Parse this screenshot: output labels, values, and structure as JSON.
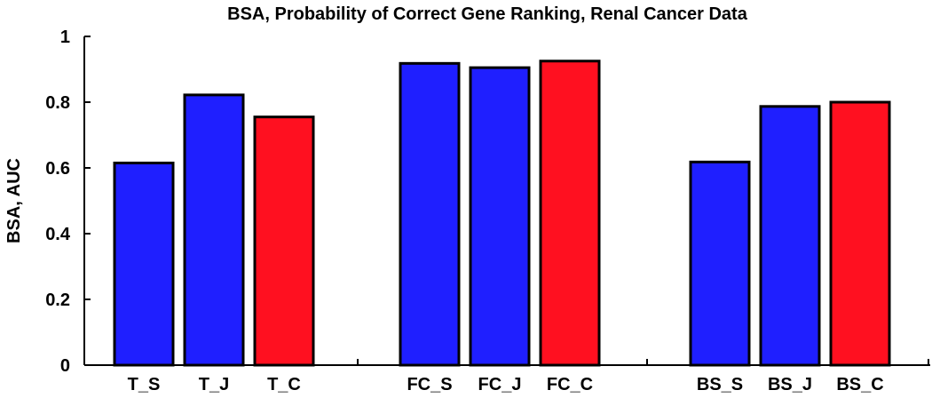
{
  "chart_data": {
    "type": "bar",
    "title": "BSA, Probability of Correct Gene Ranking, Renal Cancer Data",
    "xlabel": "",
    "ylabel": "BSA, AUC",
    "ylim": [
      0,
      1
    ],
    "yticks": [
      "0",
      "0.2",
      "0.4",
      "0.6",
      "0.8",
      "1"
    ],
    "y_tick_values": [
      0,
      0.2,
      0.4,
      0.6,
      0.8,
      1
    ],
    "groups": [
      {
        "bars": [
          {
            "label": "T_S",
            "value": 0.615,
            "color": "#1f1fff"
          },
          {
            "label": "T_J",
            "value": 0.822,
            "color": "#1f1fff"
          },
          {
            "label": "T_C",
            "value": 0.755,
            "color": "#ff1020"
          }
        ]
      },
      {
        "bars": [
          {
            "label": "FC_S",
            "value": 0.918,
            "color": "#1f1fff"
          },
          {
            "label": "FC_J",
            "value": 0.905,
            "color": "#1f1fff"
          },
          {
            "label": "FC_C",
            "value": 0.925,
            "color": "#ff1020"
          }
        ]
      },
      {
        "bars": [
          {
            "label": "BS_S",
            "value": 0.618,
            "color": "#1f1fff"
          },
          {
            "label": "BS_J",
            "value": 0.787,
            "color": "#1f1fff"
          },
          {
            "label": "BS_C",
            "value": 0.8,
            "color": "#ff1020"
          }
        ]
      }
    ],
    "grid": false,
    "legend": "none"
  }
}
